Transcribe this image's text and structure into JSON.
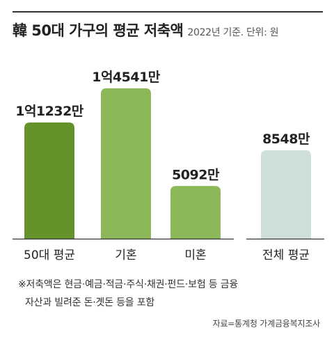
{
  "header": {
    "title": "韓 50대 가구의 평균 저축액",
    "subtitle": "2022년 기준. 단위: 원"
  },
  "chart_data": {
    "type": "bar",
    "categories": [
      "50대 평균",
      "기혼",
      "미혼",
      "전체 평균"
    ],
    "values": [
      112320000,
      145410000,
      50920000,
      85480000
    ],
    "data_labels": [
      "1억1232만",
      "1억4541만",
      "5092만",
      "8548만"
    ],
    "colors": [
      "#66922b",
      "#8db85a",
      "#8db85a",
      "#cfe0da"
    ],
    "unit": "원",
    "ylim": [
      0,
      150000000
    ],
    "grid": false
  },
  "notes": {
    "line1": "※저축액은 현금·예금·적금·주식·채권·펀드·보험 등 금융",
    "line2": "자산과 빌려준 돈·곗돈 등을 포함"
  },
  "source": "자료=통계청 가계금융복지조사"
}
